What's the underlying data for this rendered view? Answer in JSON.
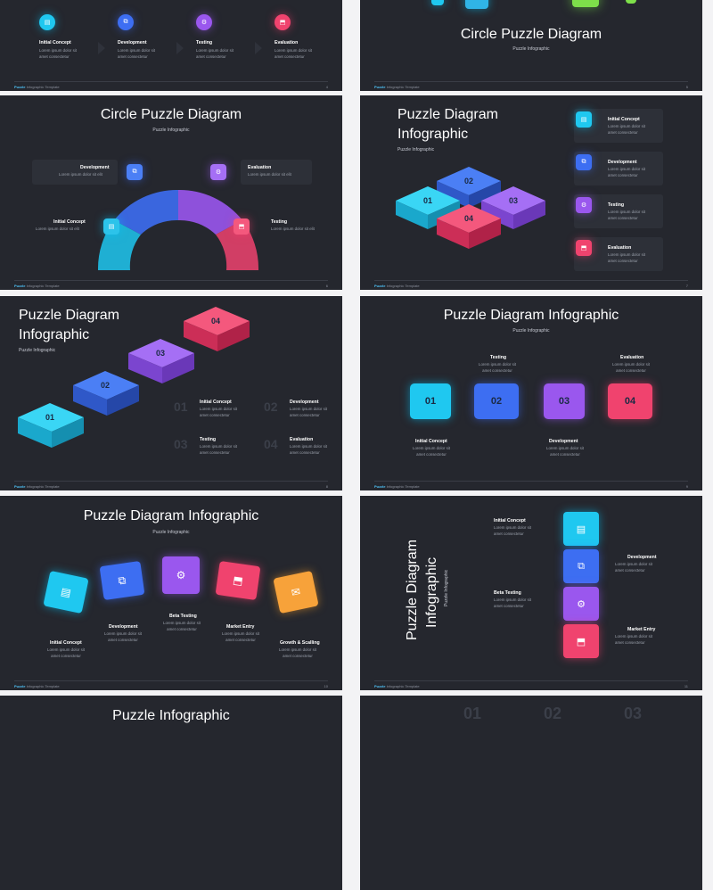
{
  "footer": {
    "brand": "Puzzle",
    "template": " Infographic Template"
  },
  "colors": {
    "cyan": "#1fc8f0",
    "blue": "#3d6ef2",
    "purple": "#9a57ee",
    "pink": "#f0436e",
    "orange": "#f7a23a",
    "bg": "#25272e"
  },
  "lorem": "Lorem ipsum dolor sit",
  "lorem2": "amet consectetur",
  "lorem_long": "Lorem ipsum dolor sit elit",
  "slides": {
    "s1": {
      "steps": [
        "Initial Concept",
        "Development",
        "Testing",
        "Evaluation"
      ],
      "page": "4"
    },
    "s2": {
      "title": "Circle Puzzle Diagram",
      "subtitle": "Puzzle Infographic",
      "page": "5"
    },
    "s3": {
      "title": "Circle Puzzle Diagram",
      "subtitle": "Puzzle Infographic",
      "labels": [
        "Development",
        "Evaluation",
        "Initial Concept",
        "Testing"
      ],
      "page": "6"
    },
    "s4": {
      "title_l1": "Puzzle Diagram",
      "title_l2": "Infographic",
      "subtitle": "Puzzle Infographic",
      "pieces": [
        "01",
        "02",
        "03",
        "04"
      ],
      "labels": [
        "Initial Concept",
        "Development",
        "Testing",
        "Evaluation"
      ],
      "page": "7"
    },
    "s5": {
      "title_l1": "Puzzle Diagram",
      "title_l2": "Infographic",
      "subtitle": "Puzzle Infographic",
      "pieces": [
        "01",
        "02",
        "03",
        "04"
      ],
      "labels": [
        "Initial Concept",
        "Development",
        "Testing",
        "Evaluation"
      ],
      "page": "8"
    },
    "s6": {
      "title": "Puzzle Diagram Infographic",
      "subtitle": "Puzzle Infographic",
      "pieces": [
        "01",
        "02",
        "03",
        "04"
      ],
      "labels": [
        "Testing",
        "Evaluation",
        "Initial Concept",
        "Development"
      ],
      "page": "9"
    },
    "s7": {
      "title": "Puzzle Diagram Infographic",
      "subtitle": "Puzzle Infographic",
      "labels": [
        "Initial Concept",
        "Development",
        "Beta Testing",
        "Market Entry",
        "Growth & Scalling"
      ],
      "page": "10"
    },
    "s8": {
      "title_l1": "Puzzle Diagram",
      "title_l2": "Infographic",
      "subtitle": "Puzzle Infographic",
      "labels": [
        "Initial Concept",
        "Development",
        "Beta Testing",
        "Market Entry"
      ],
      "page": "11"
    },
    "s9": {
      "title": "Puzzle Infographic"
    },
    "s10": {
      "nums": [
        "01",
        "02",
        "03"
      ]
    }
  }
}
